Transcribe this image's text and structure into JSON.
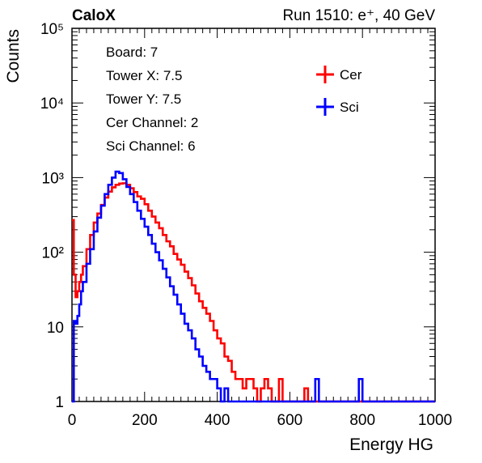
{
  "chart_data": {
    "type": "line",
    "brand": "CaloX",
    "run_label": "Run 1510: e⁺, 40 GeV",
    "xlabel": "Energy HG",
    "ylabel": "Counts",
    "xlim": [
      0,
      1000
    ],
    "ylim": [
      1,
      100000
    ],
    "log_y": true,
    "x_ticks": [
      0,
      200,
      400,
      600,
      800,
      1000
    ],
    "x_tick_labels": [
      "0",
      "200",
      "400",
      "600",
      "800",
      "1000"
    ],
    "y_ticks": [
      1,
      10,
      100,
      1000,
      10000,
      100000
    ],
    "y_tick_labels": [
      "1",
      "10",
      "10²",
      "10³",
      "10⁴",
      "10⁵"
    ],
    "grid": false,
    "legend_position": "top-right",
    "info_lines": [
      "Board: 7",
      "Tower X: 7.5",
      "Tower Y: 7.5",
      "Cer Channel: 2",
      "Sci Channel: 6"
    ],
    "series": [
      {
        "name": "Cer",
        "color": "#ff0000",
        "x": [
          0,
          5,
          10,
          15,
          20,
          25,
          30,
          40,
          50,
          60,
          70,
          80,
          90,
          100,
          110,
          120,
          130,
          140,
          150,
          160,
          170,
          180,
          190,
          200,
          210,
          220,
          230,
          240,
          250,
          260,
          270,
          280,
          290,
          300,
          310,
          320,
          330,
          340,
          350,
          360,
          370,
          380,
          390,
          400,
          410,
          420,
          430,
          440,
          450,
          460,
          470,
          480,
          490,
          500,
          510,
          520,
          530,
          540,
          550,
          560,
          570,
          580,
          590,
          600,
          610,
          620,
          630,
          640,
          650,
          660,
          680,
          700,
          750,
          800,
          850,
          900,
          950,
          1000
        ],
        "y": [
          270,
          50,
          25,
          30,
          40,
          50,
          65,
          110,
          170,
          250,
          330,
          430,
          540,
          650,
          740,
          800,
          830,
          840,
          800,
          720,
          640,
          560,
          520,
          440,
          360,
          300,
          250,
          210,
          170,
          140,
          120,
          95,
          80,
          68,
          55,
          45,
          36,
          28,
          22,
          18,
          15,
          12,
          9,
          7,
          6,
          4,
          3.5,
          2.5,
          2,
          2,
          1.5,
          2,
          2,
          1.5,
          1,
          1.5,
          2,
          1.5,
          1,
          1,
          2,
          1,
          1,
          1,
          1,
          1,
          1,
          1.5,
          1,
          1,
          1,
          1,
          1,
          1,
          1,
          1,
          1,
          1
        ]
      },
      {
        "name": "Sci",
        "color": "#0000ff",
        "x": [
          0,
          5,
          10,
          15,
          20,
          25,
          30,
          40,
          50,
          60,
          70,
          80,
          90,
          100,
          110,
          120,
          130,
          140,
          150,
          160,
          170,
          180,
          190,
          200,
          210,
          220,
          230,
          240,
          250,
          260,
          270,
          280,
          290,
          300,
          310,
          320,
          330,
          340,
          350,
          360,
          370,
          380,
          390,
          400,
          410,
          420,
          430,
          440,
          450,
          460,
          470,
          480,
          490,
          500,
          520,
          540,
          560,
          580,
          600,
          620,
          640,
          660,
          670,
          680,
          700,
          750,
          790,
          800,
          850,
          900,
          950,
          1000
        ],
        "y": [
          1,
          12,
          11,
          14,
          20,
          30,
          40,
          70,
          110,
          190,
          290,
          420,
          600,
          800,
          1000,
          1200,
          1150,
          950,
          750,
          600,
          470,
          360,
          280,
          220,
          170,
          130,
          100,
          78,
          60,
          46,
          35,
          27,
          20,
          15,
          11,
          9,
          7,
          5,
          4,
          3,
          2.5,
          2,
          2,
          1.5,
          1,
          1.5,
          1,
          1,
          1,
          1,
          1,
          1,
          1,
          1,
          1,
          1,
          1,
          1,
          1,
          1,
          1,
          1,
          2,
          1,
          1,
          1,
          2,
          1,
          1,
          1,
          1,
          1
        ]
      }
    ]
  }
}
